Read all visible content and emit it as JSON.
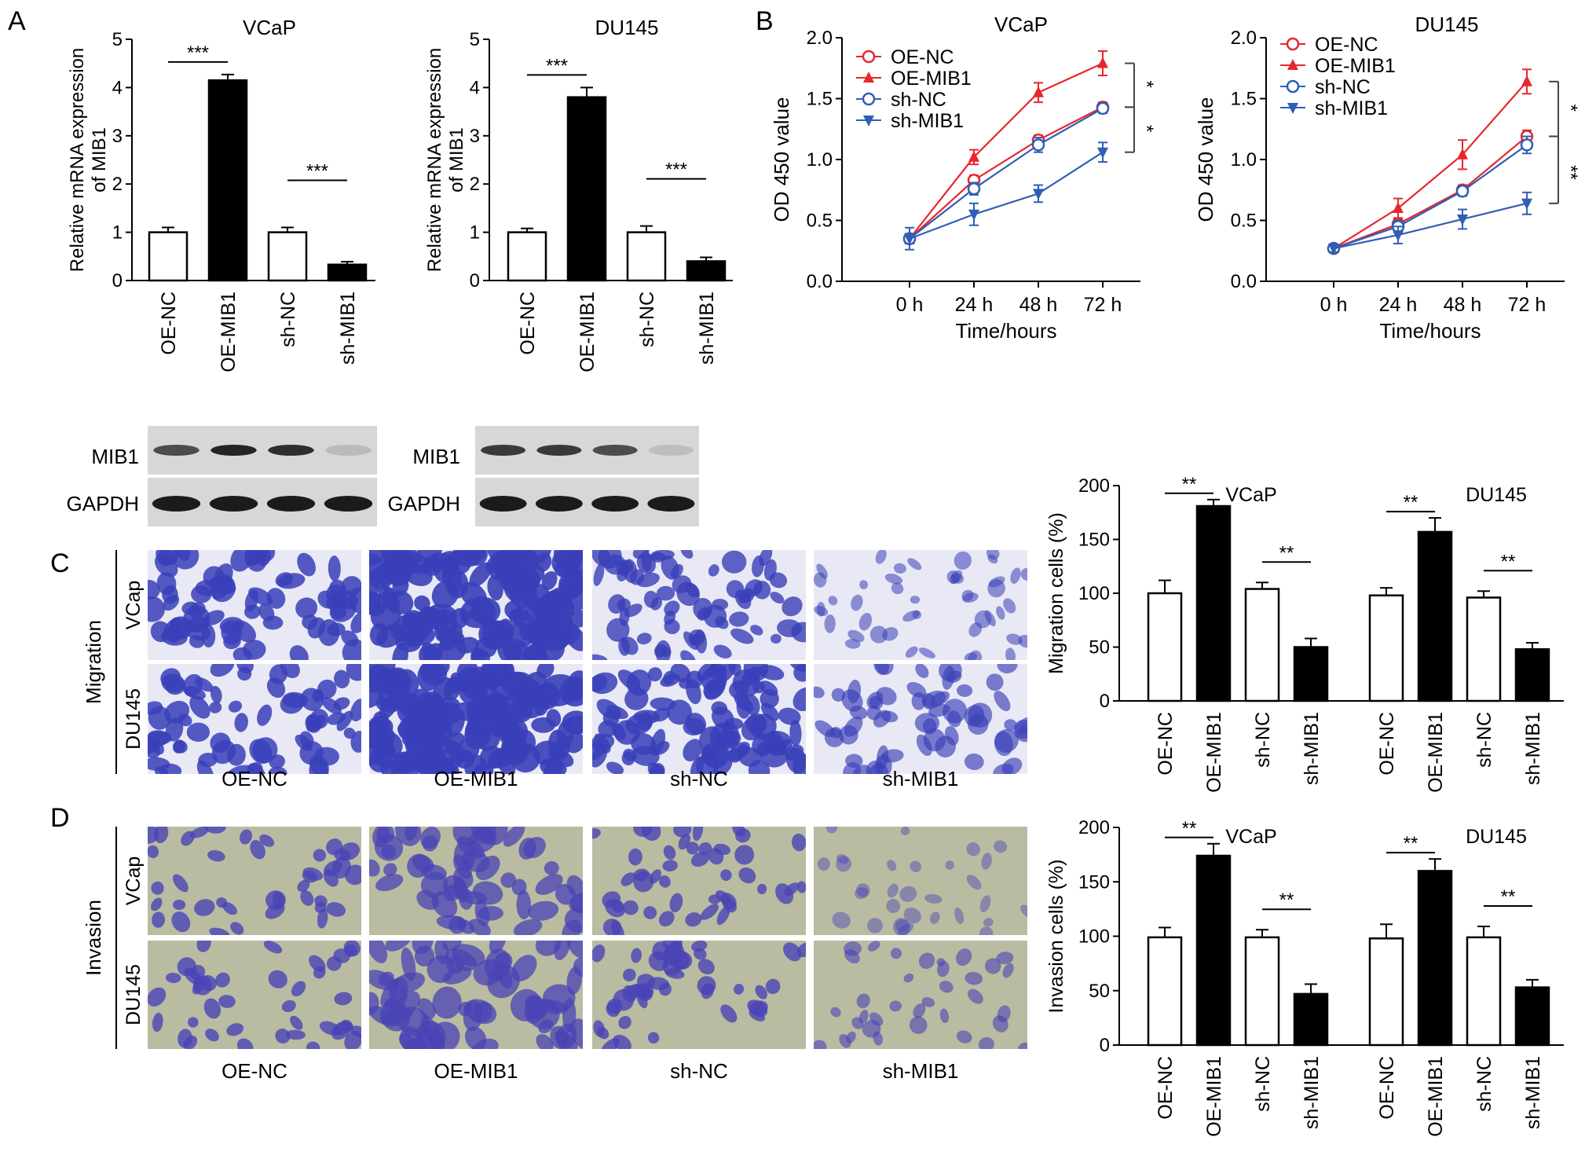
{
  "panel_labels": {
    "A": "A",
    "B": "B",
    "C": "C",
    "D": "D"
  },
  "blot": {
    "row_labels": [
      "MIB1",
      "GAPDH"
    ]
  },
  "micrographs": {
    "row_labels": [
      "VCap",
      "DU145"
    ],
    "col_labels": [
      "OE-NC",
      "OE-MIB1",
      "sh-NC",
      "sh-MIB1"
    ],
    "migration_label": "Migration",
    "invasion_label": "Invasion",
    "migration_stain_color": "#3a3fb8",
    "migration_bg_color": "#e8e9f4",
    "invasion_stain_color": "#4a43b6",
    "invasion_bg_color": "#b9bca0"
  },
  "colors": {
    "red": "#e8262b",
    "blue": "#2f5eb5",
    "black": "#000000",
    "white": "#ffffff"
  },
  "chart_data": [
    {
      "id": "A-VCaP",
      "type": "bar",
      "title": "VCaP",
      "ylabel": "Relative mRNA expression of MIB1",
      "categories": [
        "OE-NC",
        "OE-MIB1",
        "sh-NC",
        "sh-MIB1"
      ],
      "values": [
        1.0,
        4.15,
        1.0,
        0.33
      ],
      "errors": [
        0.1,
        0.12,
        0.1,
        0.06
      ],
      "fills": [
        "white",
        "black",
        "white",
        "black"
      ],
      "ylim": [
        0,
        5
      ],
      "yticks": [
        0,
        1,
        2,
        3,
        4,
        5
      ],
      "significance": [
        {
          "pair": [
            0,
            1
          ],
          "label": "***"
        },
        {
          "pair": [
            2,
            3
          ],
          "label": "***"
        }
      ]
    },
    {
      "id": "A-DU145",
      "type": "bar",
      "title": "DU145",
      "ylabel": "Relative mRNA expression of MIB1",
      "categories": [
        "OE-NC",
        "OE-MIB1",
        "sh-NC",
        "sh-MIB1"
      ],
      "values": [
        1.0,
        3.8,
        1.0,
        0.4
      ],
      "errors": [
        0.08,
        0.2,
        0.13,
        0.08
      ],
      "fills": [
        "white",
        "black",
        "white",
        "black"
      ],
      "ylim": [
        0,
        5
      ],
      "yticks": [
        0,
        1,
        2,
        3,
        4,
        5
      ],
      "significance": [
        {
          "pair": [
            0,
            1
          ],
          "label": "***"
        },
        {
          "pair": [
            2,
            3
          ],
          "label": "***"
        }
      ]
    },
    {
      "id": "B-VCaP",
      "type": "line",
      "title": "VCaP",
      "xlabel": "Time/hours",
      "ylabel": "OD 450 value",
      "x": [
        "0 h",
        "24 h",
        "48 h",
        "72 h"
      ],
      "ylim": [
        0.0,
        2.0
      ],
      "yticks": [
        "0.0",
        "0.5",
        "1.0",
        "1.5",
        "2.0"
      ],
      "legend_position": "top-left",
      "series": [
        {
          "name": "OE-NC",
          "values": [
            0.35,
            0.83,
            1.16,
            1.43
          ],
          "errors": [
            0.04,
            0.04,
            0.04,
            0.04
          ],
          "color": "red",
          "marker": "circle-open"
        },
        {
          "name": "OE-MIB1",
          "values": [
            0.35,
            1.02,
            1.55,
            1.79
          ],
          "errors": [
            0.04,
            0.06,
            0.08,
            0.1
          ],
          "color": "red",
          "marker": "triangle-up"
        },
        {
          "name": "sh-NC",
          "values": [
            0.35,
            0.76,
            1.12,
            1.42
          ],
          "errors": [
            0.04,
            0.05,
            0.06,
            0.04
          ],
          "color": "blue",
          "marker": "circle-open"
        },
        {
          "name": "sh-MIB1",
          "values": [
            0.35,
            0.55,
            0.72,
            1.06
          ],
          "errors": [
            0.09,
            0.09,
            0.07,
            0.08
          ],
          "color": "blue",
          "marker": "triangle-down"
        }
      ],
      "significance": [
        {
          "from": 1.79,
          "to": 1.43,
          "label": "*"
        },
        {
          "from": 1.43,
          "to": 1.06,
          "label": "*"
        }
      ]
    },
    {
      "id": "B-DU145",
      "type": "line",
      "title": "DU145",
      "xlabel": "Time/hours",
      "ylabel": "OD 450 value",
      "x": [
        "0 h",
        "24 h",
        "48 h",
        "72 h"
      ],
      "ylim": [
        0.0,
        2.0
      ],
      "yticks": [
        "0.0",
        "0.5",
        "1.0",
        "1.5",
        "2.0"
      ],
      "legend_position": "top-left",
      "series": [
        {
          "name": "OE-NC",
          "values": [
            0.27,
            0.47,
            0.75,
            1.19
          ],
          "errors": [
            0.03,
            0.04,
            0.04,
            0.05
          ],
          "color": "red",
          "marker": "circle-open"
        },
        {
          "name": "OE-MIB1",
          "values": [
            0.27,
            0.6,
            1.04,
            1.64
          ],
          "errors": [
            0.03,
            0.08,
            0.12,
            0.1
          ],
          "color": "red",
          "marker": "triangle-up"
        },
        {
          "name": "sh-NC",
          "values": [
            0.27,
            0.45,
            0.74,
            1.12
          ],
          "errors": [
            0.03,
            0.05,
            0.04,
            0.07
          ],
          "color": "blue",
          "marker": "circle-open"
        },
        {
          "name": "sh-MIB1",
          "values": [
            0.27,
            0.38,
            0.51,
            0.64
          ],
          "errors": [
            0.03,
            0.07,
            0.08,
            0.09
          ],
          "color": "blue",
          "marker": "triangle-down"
        }
      ],
      "significance": [
        {
          "from": 1.64,
          "to": 1.19,
          "label": "*"
        },
        {
          "from": 1.19,
          "to": 0.64,
          "label": "**"
        }
      ]
    },
    {
      "id": "C-Migration",
      "type": "bar",
      "ylabel": "Migration cells (%)",
      "groups": [
        {
          "title": "VCaP",
          "categories": [
            "OE-NC",
            "OE-MIB1",
            "sh-NC",
            "sh-MIB1"
          ],
          "values": [
            100,
            181,
            104,
            50
          ],
          "errors": [
            12,
            6,
            6,
            8
          ],
          "significance": [
            {
              "pair": [
                0,
                1
              ],
              "label": "**"
            },
            {
              "pair": [
                2,
                3
              ],
              "label": "**"
            }
          ]
        },
        {
          "title": "DU145",
          "categories": [
            "OE-NC",
            "OE-MIB1",
            "sh-NC",
            "sh-MIB1"
          ],
          "values": [
            98,
            157,
            96,
            48
          ],
          "errors": [
            7,
            13,
            6,
            6
          ],
          "significance": [
            {
              "pair": [
                0,
                1
              ],
              "label": "**"
            },
            {
              "pair": [
                2,
                3
              ],
              "label": "**"
            }
          ]
        }
      ],
      "fills": [
        "white",
        "black",
        "white",
        "black"
      ],
      "ylim": [
        0,
        200
      ],
      "yticks": [
        0,
        50,
        100,
        150,
        200
      ]
    },
    {
      "id": "D-Invasion",
      "type": "bar",
      "ylabel": "Invasion cells (%)",
      "groups": [
        {
          "title": "VCaP",
          "categories": [
            "OE-NC",
            "OE-MIB1",
            "sh-NC",
            "sh-MIB1"
          ],
          "values": [
            99,
            174,
            99,
            47
          ],
          "errors": [
            9,
            11,
            7,
            9
          ],
          "significance": [
            {
              "pair": [
                0,
                1
              ],
              "label": "**"
            },
            {
              "pair": [
                2,
                3
              ],
              "label": "**"
            }
          ]
        },
        {
          "title": "DU145",
          "categories": [
            "OE-NC",
            "OE-MIB1",
            "sh-NC",
            "sh-MIB1"
          ],
          "values": [
            98,
            160,
            99,
            53
          ],
          "errors": [
            13,
            11,
            10,
            7
          ],
          "significance": [
            {
              "pair": [
                0,
                1
              ],
              "label": "**"
            },
            {
              "pair": [
                2,
                3
              ],
              "label": "**"
            }
          ]
        }
      ],
      "fills": [
        "white",
        "black",
        "white",
        "black"
      ],
      "ylim": [
        0,
        200
      ],
      "yticks": [
        0,
        50,
        100,
        150,
        200
      ]
    }
  ]
}
